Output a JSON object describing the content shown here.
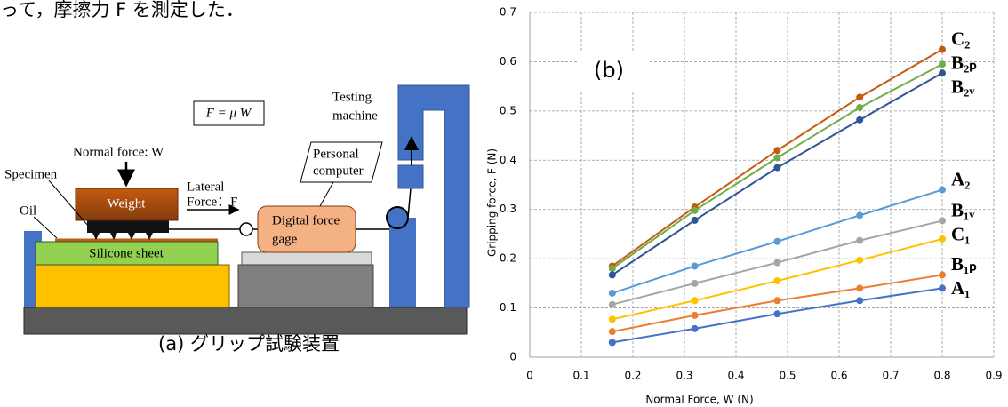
{
  "text_fragment": "って，摩擦力 F を測定した．",
  "diagram": {
    "formula": "F = μ W",
    "normal_force": "Normal force: W",
    "specimen": "Specimen",
    "oil": "Oil",
    "weight": "Weight",
    "silicone_sheet": "Silicone sheet",
    "lateral_force": [
      "Lateral",
      "Force：F"
    ],
    "force_gage": [
      "Digital force",
      "gage"
    ],
    "personal_computer": [
      "Personal",
      "computer"
    ],
    "testing_machine": [
      "Testing",
      "machine"
    ],
    "caption": "(a) グリップ試験装置"
  },
  "chart_data": {
    "type": "line",
    "annotation": "(b)",
    "x_label": "Normal Force, W (N)",
    "y_label": "Gripping force, F (N)",
    "x": [
      0.16,
      0.32,
      0.48,
      0.64,
      0.8
    ],
    "series": [
      {
        "name": "C₂",
        "color": "#c55a11",
        "values": [
          0.185,
          0.305,
          0.42,
          0.528,
          0.625
        ]
      },
      {
        "name": "B₂ₚ",
        "color": "#70ad47",
        "values": [
          0.18,
          0.298,
          0.405,
          0.507,
          0.595
        ]
      },
      {
        "name": "B₂ᵥ",
        "color": "#2f5597",
        "values": [
          0.167,
          0.278,
          0.385,
          0.482,
          0.577
        ]
      },
      {
        "name": "A₂",
        "color": "#5b9bd5",
        "values": [
          0.13,
          0.185,
          0.235,
          0.288,
          0.34
        ]
      },
      {
        "name": "B₁ᵥ",
        "color": "#a5a5a5",
        "values": [
          0.107,
          0.15,
          0.192,
          0.237,
          0.277
        ]
      },
      {
        "name": "C₁",
        "color": "#ffc000",
        "values": [
          0.077,
          0.115,
          0.155,
          0.197,
          0.24
        ]
      },
      {
        "name": "B₁ₚ",
        "color": "#ed7d31",
        "values": [
          0.052,
          0.085,
          0.115,
          0.14,
          0.167
        ]
      },
      {
        "name": "A₁",
        "color": "#4472c4",
        "values": [
          0.03,
          0.058,
          0.088,
          0.115,
          0.14
        ]
      }
    ],
    "xlim": [
      0,
      0.9
    ],
    "xticks": [
      0,
      0.1,
      0.2,
      0.3,
      0.4,
      0.5,
      0.6,
      0.7,
      0.8,
      0.9
    ],
    "ylim": [
      0,
      0.7
    ],
    "yticks": [
      0,
      0.1,
      0.2,
      0.3,
      0.4,
      0.5,
      0.6,
      0.7
    ],
    "grid": true
  }
}
